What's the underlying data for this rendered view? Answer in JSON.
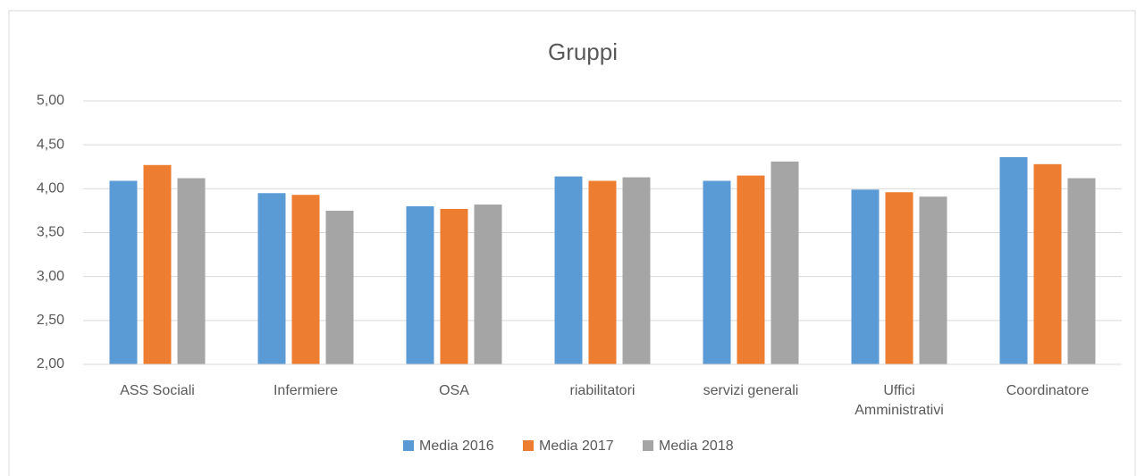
{
  "chart_data": {
    "type": "bar",
    "title": "Gruppi",
    "categories": [
      "ASS Sociali",
      "Infermiere",
      "OSA",
      "riabilitatori",
      "servizi generali",
      "Uffici Amministrativi",
      "Coordinatore"
    ],
    "series": [
      {
        "name": "Media 2016",
        "color": "#5b9bd5",
        "values": [
          4.09,
          3.95,
          3.8,
          4.14,
          4.09,
          3.99,
          4.36
        ]
      },
      {
        "name": "Media 2017",
        "color": "#ed7d31",
        "values": [
          4.27,
          3.93,
          3.77,
          4.09,
          4.15,
          3.96,
          4.28
        ]
      },
      {
        "name": "Media 2018",
        "color": "#a5a5a5",
        "values": [
          4.12,
          3.75,
          3.82,
          4.13,
          4.31,
          3.91,
          4.12
        ]
      }
    ],
    "ylim": [
      2,
      5
    ],
    "yticks": [
      {
        "value": 2,
        "label": "2,00"
      },
      {
        "value": 2.5,
        "label": "2,50"
      },
      {
        "value": 3,
        "label": "3,00"
      },
      {
        "value": 3.5,
        "label": "3,50"
      },
      {
        "value": 4,
        "label": "4,00"
      },
      {
        "value": 4.5,
        "label": "4,50"
      },
      {
        "value": 5,
        "label": "5,00"
      }
    ],
    "grid": true,
    "legend": "bottom"
  }
}
